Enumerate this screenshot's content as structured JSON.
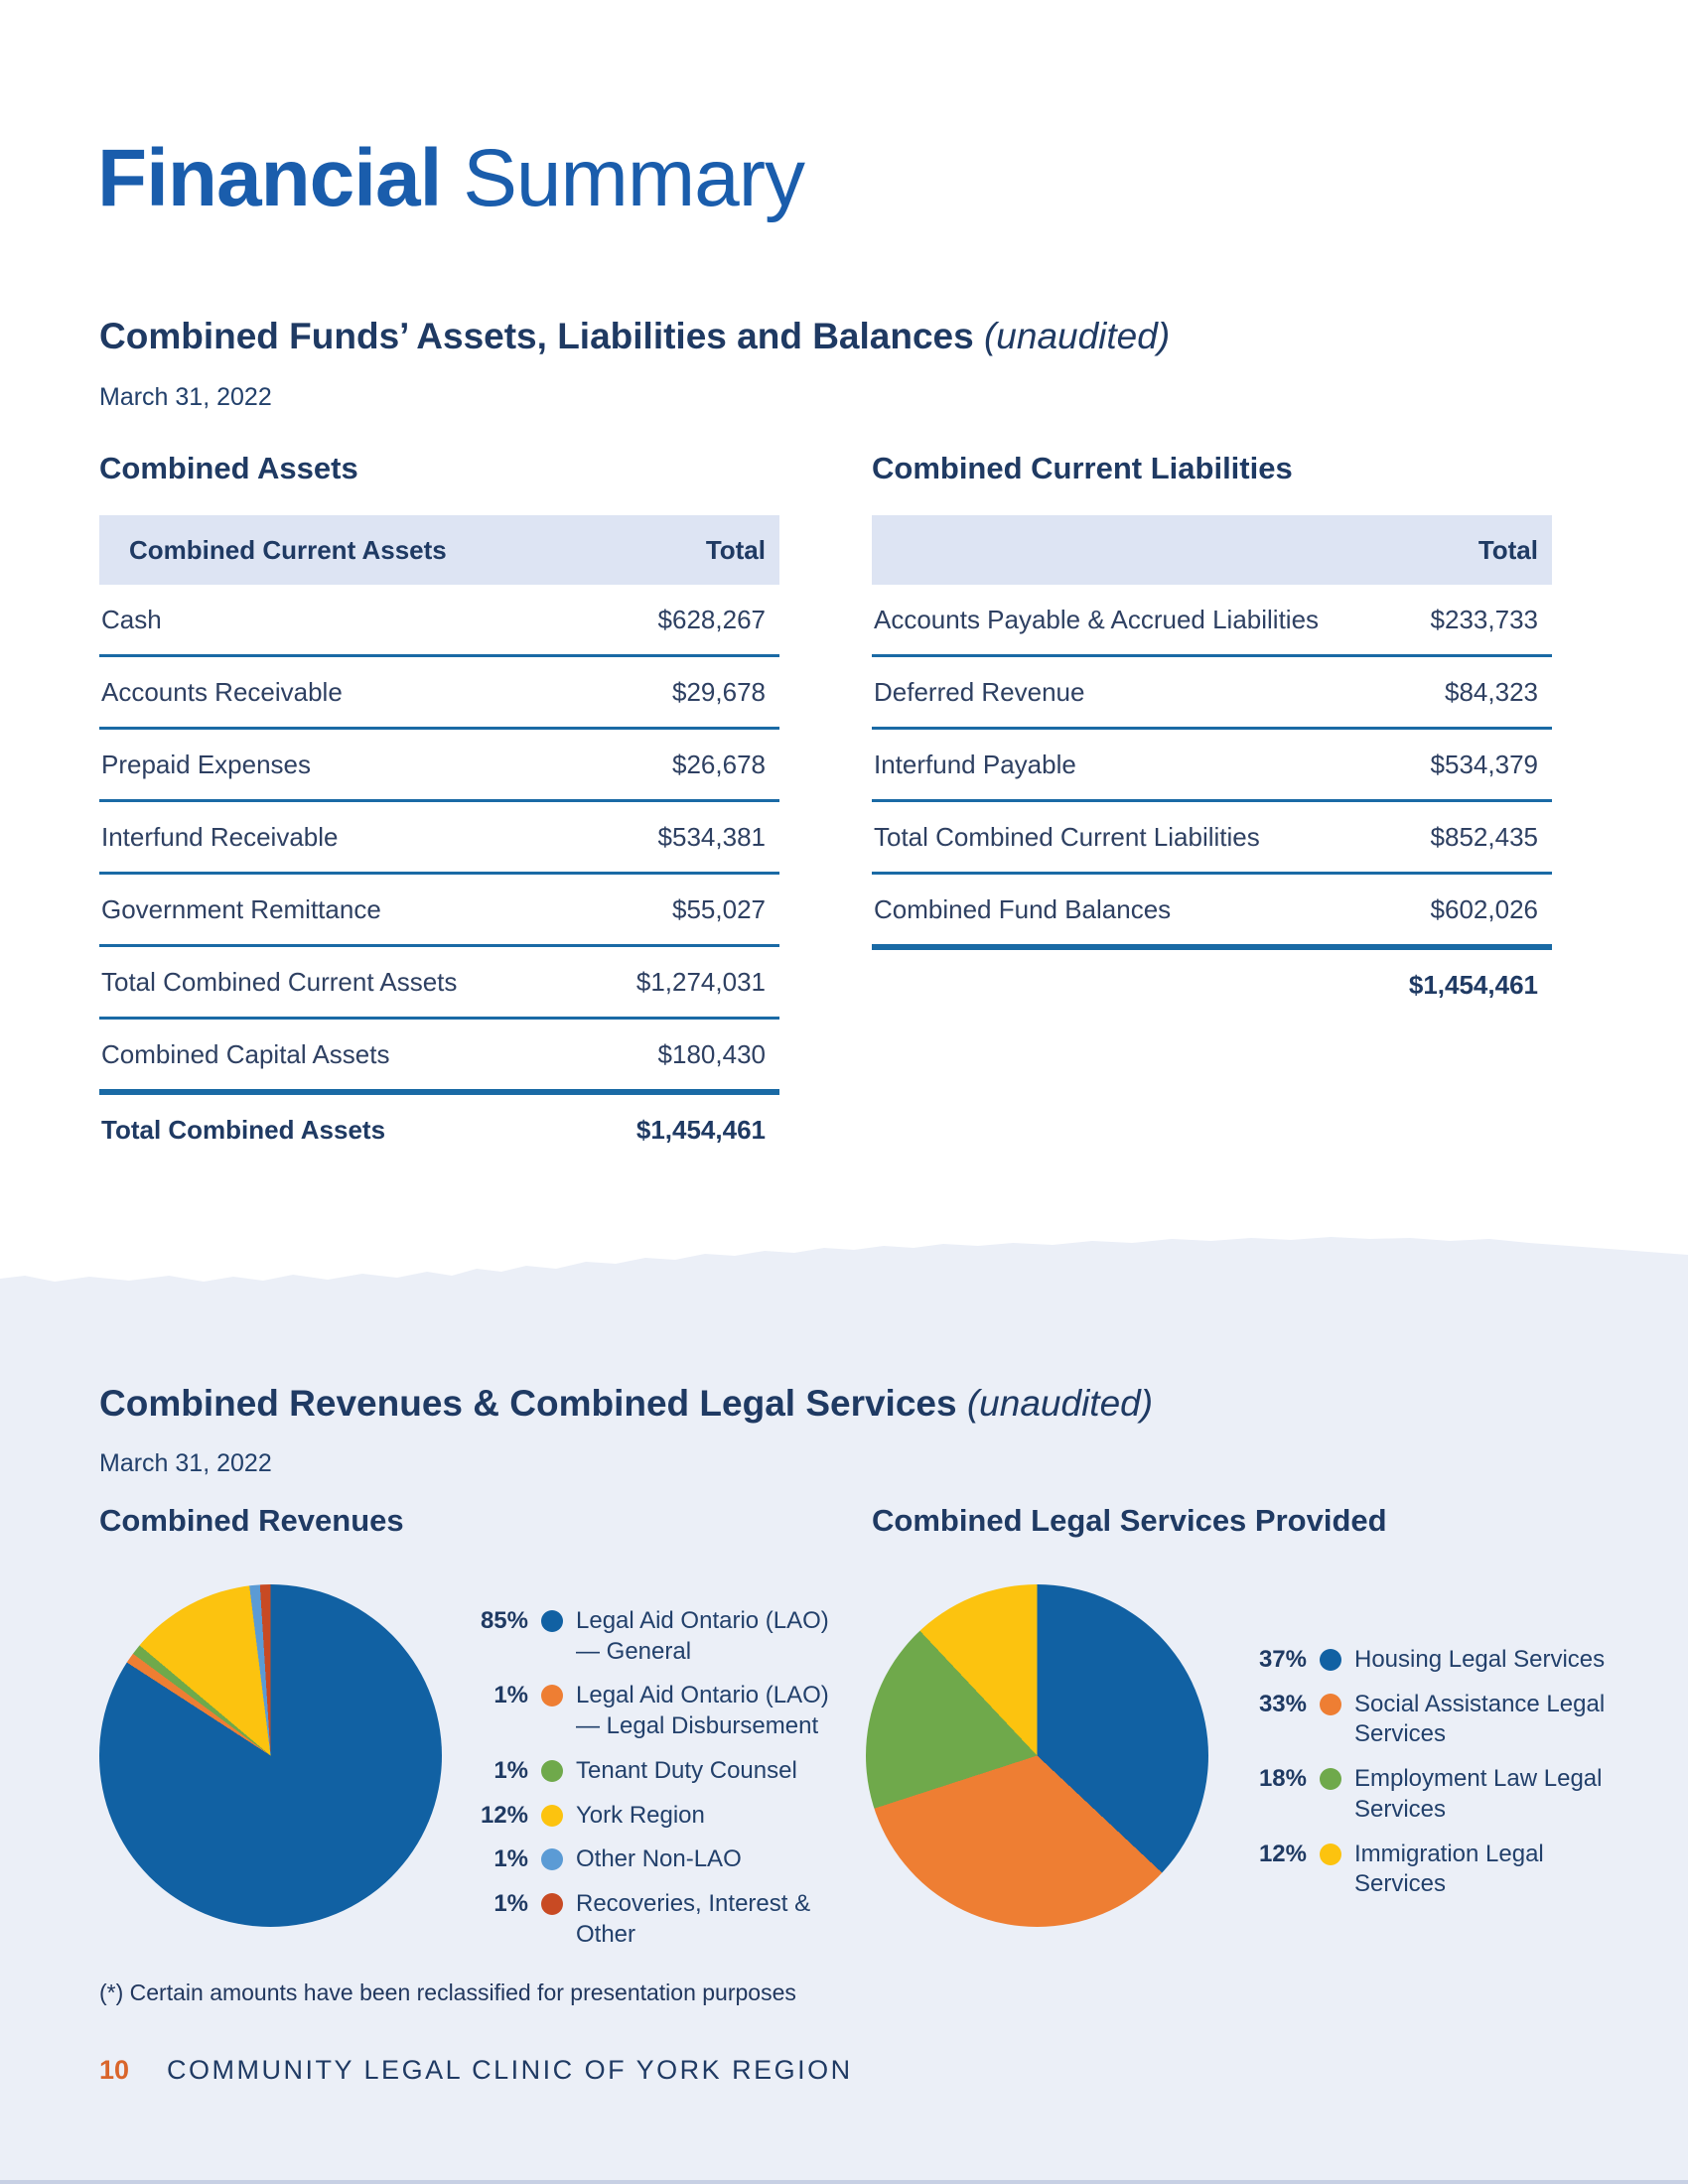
{
  "page_title": {
    "bold": "Financial",
    "light": " Summary"
  },
  "section_balance": {
    "heading": "Combined Funds’ Assets, Liabilities and Balances ",
    "heading_note": "(unaudited)",
    "date": "March 31, 2022",
    "assets_table": {
      "title": "Combined Assets",
      "header_label": "Combined Current Assets",
      "header_value": "Total",
      "rows": [
        {
          "label": "Cash",
          "value": "$628,267"
        },
        {
          "label": "Accounts Receivable",
          "value": "$29,678"
        },
        {
          "label": "Prepaid Expenses",
          "value": "$26,678"
        },
        {
          "label": "Interfund Receivable",
          "value": "$534,381"
        },
        {
          "label": "Government Remittance",
          "value": "$55,027"
        },
        {
          "label": "Total Combined Current Assets",
          "value": "$1,274,031"
        },
        {
          "label": "Combined Capital Assets",
          "value": "$180,430"
        },
        {
          "label": "Total Combined Assets",
          "value": "$1,454,461"
        }
      ]
    },
    "liabilities_table": {
      "title": "Combined Current Liabilities",
      "header_label": "",
      "header_value": "Total",
      "rows": [
        {
          "label": "Accounts Payable & Accrued Liabilities",
          "value": "$233,733"
        },
        {
          "label": "Deferred Revenue",
          "value": "$84,323"
        },
        {
          "label": "Interfund Payable",
          "value": "$534,379"
        },
        {
          "label": "Total Combined Current Liabilities",
          "value": "$852,435"
        },
        {
          "label": "Combined Fund Balances",
          "value": "$602,026"
        },
        {
          "label": "",
          "value": "$1,454,461"
        }
      ]
    }
  },
  "section_revenues": {
    "heading": "Combined Revenues & Combined Legal Services ",
    "heading_note": "(unaudited)",
    "date": "March 31, 2022"
  },
  "chart_data": [
    {
      "type": "pie",
      "title": "Combined Revenues",
      "labels": [
        "Legal Aid Ontario (LAO) — General",
        "Legal Aid Ontario (LAO) — Legal Disbursement",
        "Tenant Duty Counsel",
        "York Region",
        "Other Non-LAO",
        "Recoveries, Interest & Other"
      ],
      "values": [
        85,
        1,
        1,
        12,
        1,
        1
      ],
      "value_suffix": "%",
      "colors": [
        "#1161a3",
        "#ee7e33",
        "#6fa94b",
        "#fcc30f",
        "#5b9bd5",
        "#c84a23"
      ],
      "legend_position": "right",
      "start_angle": "top-clockwise"
    },
    {
      "type": "pie",
      "title": "Combined Legal Services Provided",
      "labels": [
        "Housing Legal Services",
        "Social Assistance Legal Services",
        "Employment Law Legal Services",
        "Immigration Legal Services"
      ],
      "values": [
        37,
        33,
        18,
        12
      ],
      "value_suffix": "%",
      "colors": [
        "#1161a3",
        "#ee7e33",
        "#6fa94b",
        "#fcc30f"
      ],
      "legend_position": "right",
      "start_angle": "top-clockwise"
    }
  ],
  "footnote": "(*) Certain amounts have been reclassified for presentation purposes",
  "footer": {
    "page_number": "10",
    "org": "COMMUNITY LEGAL CLINIC OF YORK REGION"
  },
  "colors": {
    "title_blue": "#1a5dac",
    "navy_text": "#1f3a63",
    "table_line_blue": "#1a6aa5",
    "table_header_bg": "#dde4f3",
    "lower_section_bg": "#ebeff7",
    "footer_page_number_orange": "#d9652b"
  }
}
